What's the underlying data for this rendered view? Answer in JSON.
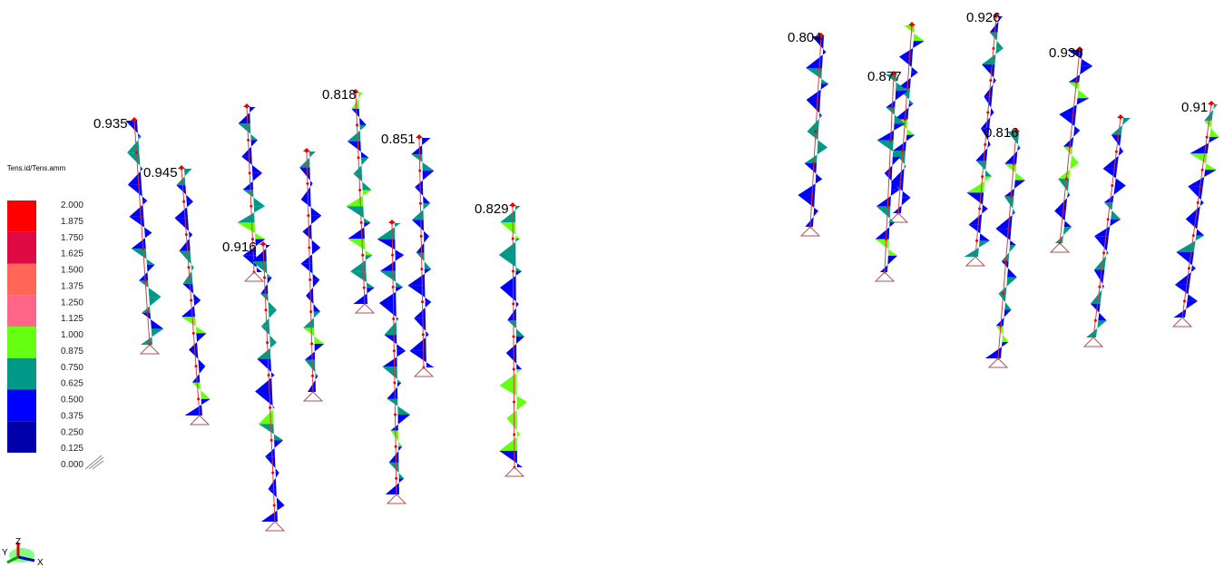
{
  "legend": {
    "title": "Tens.id/Tens.amm",
    "levels": [
      "2.000",
      "1.875",
      "1.750",
      "1.625",
      "1.500",
      "1.375",
      "1.250",
      "1.125",
      "1.000",
      "0.875",
      "0.750",
      "0.625",
      "0.500",
      "0.375",
      "0.250",
      "0.125",
      "0.000"
    ],
    "colors": [
      "#ff0000",
      "#dd0a45",
      "#ff6655",
      "#ff6688",
      "#66ff11",
      "#009988",
      "#0000ff",
      "#0000aa"
    ]
  },
  "column_labels": [
    "0.935",
    "0.945",
    "0.916",
    "0.818",
    "0.851",
    "0.829",
    "0.804",
    "0.877",
    "0.926",
    "0.816",
    "0.936",
    "0.91"
  ],
  "axes": [
    "Z",
    "Y",
    "X"
  ]
}
